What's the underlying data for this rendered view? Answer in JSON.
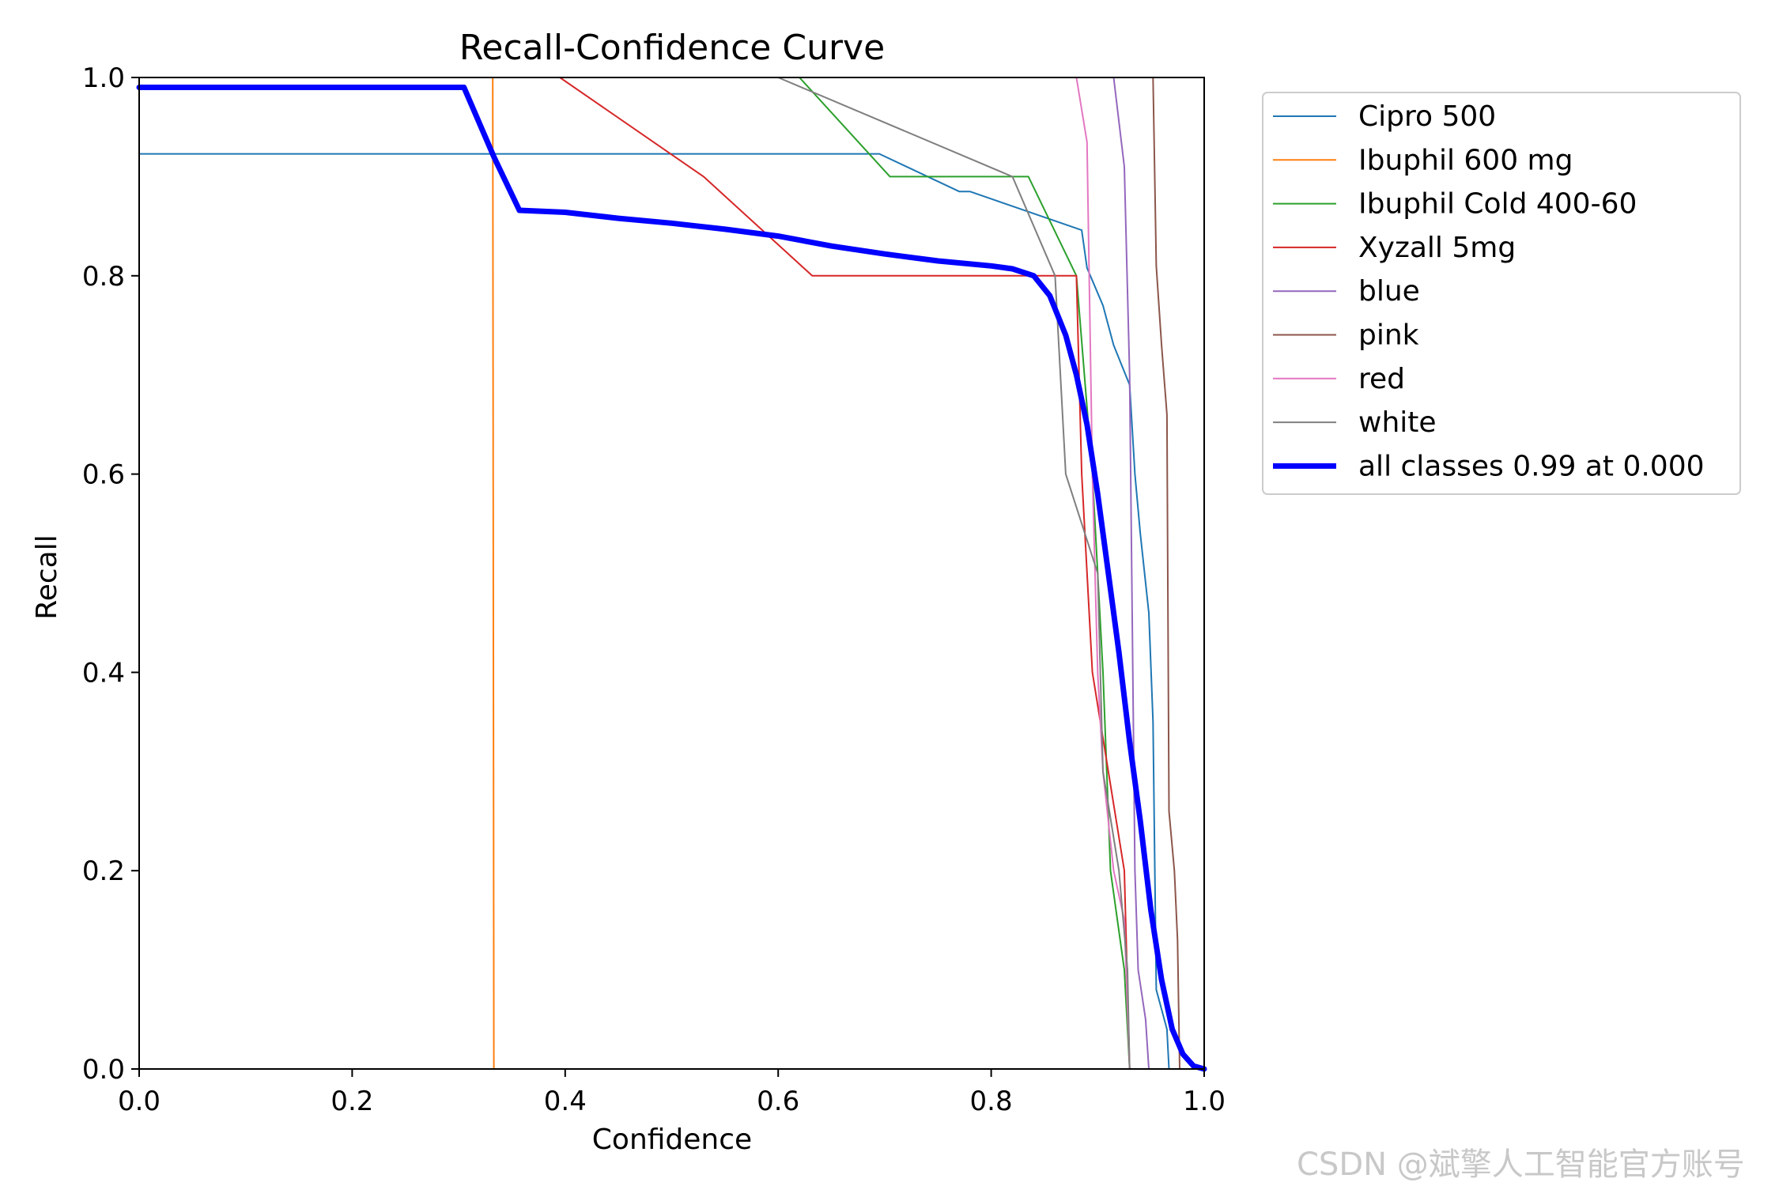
{
  "chart_data": {
    "type": "line",
    "title": "Recall-Confidence Curve",
    "xlabel": "Confidence",
    "ylabel": "Recall",
    "xlim": [
      0,
      1
    ],
    "ylim": [
      0,
      1
    ],
    "xticks": [
      "0.0",
      "0.2",
      "0.4",
      "0.6",
      "0.8",
      "1.0"
    ],
    "yticks": [
      "0.0",
      "0.2",
      "0.4",
      "0.6",
      "0.8",
      "1.0"
    ],
    "grid": false,
    "legend_position": "outside right, top",
    "series": [
      {
        "name": "Cipro 500",
        "color": "#1f77b4",
        "width": 2,
        "points": [
          [
            0,
            0.923
          ],
          [
            0.695,
            0.923
          ],
          [
            0.77,
            0.885
          ],
          [
            0.78,
            0.885
          ],
          [
            0.885,
            0.846
          ],
          [
            0.89,
            0.808
          ],
          [
            0.905,
            0.77
          ],
          [
            0.915,
            0.73
          ],
          [
            0.93,
            0.69
          ],
          [
            0.935,
            0.6
          ],
          [
            0.94,
            0.54
          ],
          [
            0.948,
            0.46
          ],
          [
            0.952,
            0.35
          ],
          [
            0.955,
            0.08
          ],
          [
            0.965,
            0.04
          ],
          [
            0.967,
            0
          ]
        ]
      },
      {
        "name": "Ibuphil 600 mg",
        "color": "#ff7f0e",
        "width": 2,
        "points": [
          [
            0,
            1
          ],
          [
            0.332,
            1
          ],
          [
            0.333,
            0
          ],
          [
            1,
            0
          ]
        ]
      },
      {
        "name": "Ibuphil Cold 400-60",
        "color": "#2ca02c",
        "width": 2,
        "points": [
          [
            0,
            1
          ],
          [
            0.62,
            1
          ],
          [
            0.705,
            0.9
          ],
          [
            0.835,
            0.9
          ],
          [
            0.88,
            0.8
          ],
          [
            0.895,
            0.6
          ],
          [
            0.905,
            0.4
          ],
          [
            0.912,
            0.2
          ],
          [
            0.925,
            0.1
          ],
          [
            0.93,
            0
          ]
        ]
      },
      {
        "name": "Xyzall 5mg",
        "color": "#d62728",
        "width": 2,
        "points": [
          [
            0,
            1
          ],
          [
            0.395,
            1
          ],
          [
            0.53,
            0.9
          ],
          [
            0.632,
            0.8
          ],
          [
            0.88,
            0.8
          ],
          [
            0.885,
            0.6
          ],
          [
            0.895,
            0.4
          ],
          [
            0.91,
            0.3
          ],
          [
            0.925,
            0.2
          ],
          [
            0.93,
            0
          ]
        ]
      },
      {
        "name": "blue",
        "color": "#9467bd",
        "width": 2,
        "points": [
          [
            0,
            1
          ],
          [
            0.915,
            1
          ],
          [
            0.925,
            0.91
          ],
          [
            0.93,
            0.7
          ],
          [
            0.935,
            0.2
          ],
          [
            0.938,
            0.1
          ],
          [
            0.945,
            0.05
          ],
          [
            0.948,
            0
          ]
        ]
      },
      {
        "name": "pink",
        "color": "#8c564b",
        "width": 2,
        "points": [
          [
            0,
            1
          ],
          [
            0.952,
            1
          ],
          [
            0.955,
            0.81
          ],
          [
            0.96,
            0.73
          ],
          [
            0.965,
            0.66
          ],
          [
            0.967,
            0.26
          ],
          [
            0.972,
            0.2
          ],
          [
            0.975,
            0.13
          ],
          [
            0.977,
            0
          ]
        ]
      },
      {
        "name": "red",
        "color": "#e377c2",
        "width": 2,
        "points": [
          [
            0,
            1
          ],
          [
            0.88,
            1
          ],
          [
            0.89,
            0.935
          ],
          [
            0.895,
            0.6
          ],
          [
            0.9,
            0.4
          ],
          [
            0.905,
            0.3
          ],
          [
            0.915,
            0.2
          ],
          [
            0.925,
            0.15
          ],
          [
            0.93,
            0
          ]
        ]
      },
      {
        "name": "white",
        "color": "#7f7f7f",
        "width": 2,
        "points": [
          [
            0,
            1
          ],
          [
            0.6,
            1
          ],
          [
            0.82,
            0.9
          ],
          [
            0.86,
            0.8
          ],
          [
            0.87,
            0.6
          ],
          [
            0.9,
            0.5
          ],
          [
            0.905,
            0.3
          ],
          [
            0.92,
            0.2
          ],
          [
            0.928,
            0.1
          ],
          [
            0.93,
            0
          ]
        ]
      },
      {
        "name": "all classes 0.99 at 0.000",
        "color": "#0000ff",
        "width": 7,
        "points": [
          [
            0,
            0.99
          ],
          [
            0.305,
            0.99
          ],
          [
            0.333,
            0.92
          ],
          [
            0.357,
            0.866
          ],
          [
            0.4,
            0.864
          ],
          [
            0.45,
            0.858
          ],
          [
            0.5,
            0.853
          ],
          [
            0.55,
            0.847
          ],
          [
            0.6,
            0.84
          ],
          [
            0.65,
            0.83
          ],
          [
            0.7,
            0.822
          ],
          [
            0.75,
            0.815
          ],
          [
            0.8,
            0.81
          ],
          [
            0.82,
            0.807
          ],
          [
            0.84,
            0.8
          ],
          [
            0.855,
            0.78
          ],
          [
            0.87,
            0.74
          ],
          [
            0.88,
            0.7
          ],
          [
            0.89,
            0.65
          ],
          [
            0.9,
            0.58
          ],
          [
            0.91,
            0.5
          ],
          [
            0.92,
            0.42
          ],
          [
            0.93,
            0.33
          ],
          [
            0.94,
            0.25
          ],
          [
            0.95,
            0.16
          ],
          [
            0.96,
            0.09
          ],
          [
            0.97,
            0.04
          ],
          [
            0.98,
            0.015
          ],
          [
            0.99,
            0.003
          ],
          [
            1.0,
            0
          ]
        ]
      }
    ]
  },
  "watermark": "CSDN @斌擎人工智能官方账号"
}
